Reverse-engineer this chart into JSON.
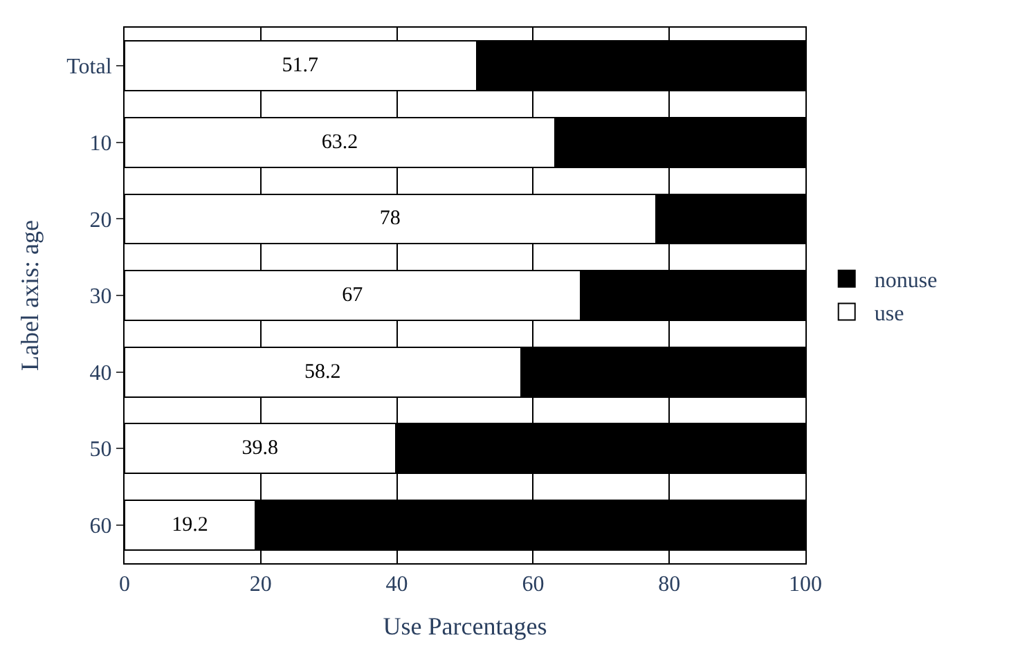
{
  "chart_data": {
    "type": "bar",
    "orientation": "horizontal",
    "stacked": true,
    "xlabel": "Use Parcentages",
    "ylabel": "Label axis: age",
    "categories": [
      "Total",
      "10",
      "20",
      "30",
      "40",
      "50",
      "60"
    ],
    "series": [
      {
        "name": "use",
        "color": "#ffffff",
        "values": [
          51.7,
          63.2,
          78,
          67,
          58.2,
          39.8,
          19.2
        ],
        "value_labels": [
          "51.7",
          "63.2",
          "78",
          "67",
          "58.2",
          "39.8",
          "19.2"
        ]
      },
      {
        "name": "nonuse",
        "color": "#000000",
        "values": [
          48.3,
          36.8,
          22,
          33,
          41.8,
          60.2,
          80.8
        ]
      }
    ],
    "xlim": [
      0,
      100
    ],
    "xticks": [
      0,
      20,
      40,
      60,
      80,
      100
    ],
    "grid": "x",
    "legend": "right"
  }
}
